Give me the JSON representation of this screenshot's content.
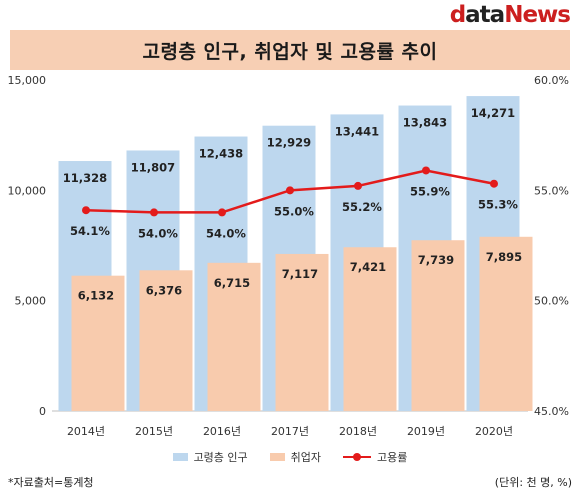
{
  "brand": {
    "part1": "d",
    "part2": "ata",
    "part3": "News"
  },
  "chart_data": {
    "type": "bar",
    "title": "고령층 인구, 취업자 및 고용률 추이",
    "categories": [
      "2014년",
      "2015년",
      "2016년",
      "2017년",
      "2018년",
      "2019년",
      "2020년"
    ],
    "series": [
      {
        "name": "고령층 인구",
        "type": "bar",
        "axis": "left",
        "color": "#bdd7ee",
        "values": [
          11328,
          11807,
          12438,
          12929,
          13441,
          13843,
          14271
        ],
        "labels": [
          "11,328",
          "11,807",
          "12,438",
          "12,929",
          "13,441",
          "13,843",
          "14,271"
        ]
      },
      {
        "name": "취업자",
        "type": "bar",
        "axis": "left",
        "color": "#f8cbad",
        "values": [
          6132,
          6376,
          6715,
          7117,
          7421,
          7739,
          7895
        ],
        "labels": [
          "6,132",
          "6,376",
          "6,715",
          "7,117",
          "7,421",
          "7,739",
          "7,895"
        ]
      },
      {
        "name": "고용률",
        "type": "line",
        "axis": "right",
        "color": "#e31b1b",
        "values": [
          54.1,
          54.0,
          54.0,
          55.0,
          55.2,
          55.9,
          55.3
        ],
        "labels": [
          "54.1%",
          "54.0%",
          "54.0%",
          "55.0%",
          "55.2%",
          "55.9%",
          "55.3%"
        ]
      }
    ],
    "y_left": {
      "ylim": [
        0,
        15000
      ],
      "ticks": [
        0,
        5000,
        10000,
        15000
      ],
      "tick_labels": [
        "0",
        "5,000",
        "10,000",
        "15,000"
      ]
    },
    "y_right": {
      "ylim": [
        45,
        60
      ],
      "ticks": [
        45,
        50,
        55,
        60
      ],
      "tick_labels": [
        "45.0%",
        "50.0%",
        "55.0%",
        "60.0%"
      ]
    },
    "grid": false,
    "legend_position": "bottom"
  },
  "footnote": "*자료출처=통계청",
  "unit_note": "(단위: 천 명, %)"
}
